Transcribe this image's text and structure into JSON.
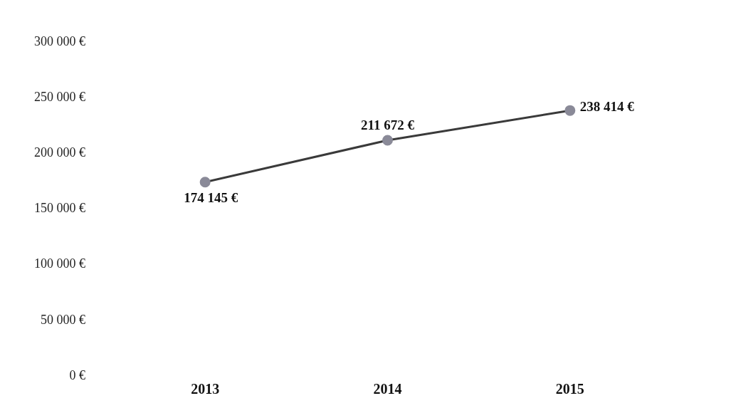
{
  "chart_data": {
    "type": "line",
    "categories": [
      "2013",
      "2014",
      "2015"
    ],
    "series": [
      {
        "color": "#3a3a3a",
        "values": [
          174145,
          211672,
          238414
        ],
        "value_labels": [
          "174 145 €",
          "211 672 €",
          "238 414 €"
        ]
      }
    ],
    "ylim": [
      0,
      300000
    ],
    "yticks": [
      {
        "value": 0,
        "label": "0 €"
      },
      {
        "value": 50000,
        "label": "50 000 €"
      },
      {
        "value": 100000,
        "label": "100 000 €"
      },
      {
        "value": 150000,
        "label": "150 000 €"
      },
      {
        "value": 200000,
        "label": "200 000 €"
      },
      {
        "value": 250000,
        "label": "250 000 €"
      },
      {
        "value": 300000,
        "label": "300 000 €"
      }
    ],
    "grid": false,
    "legend": false,
    "marker": "circle",
    "line_style": "solid"
  }
}
